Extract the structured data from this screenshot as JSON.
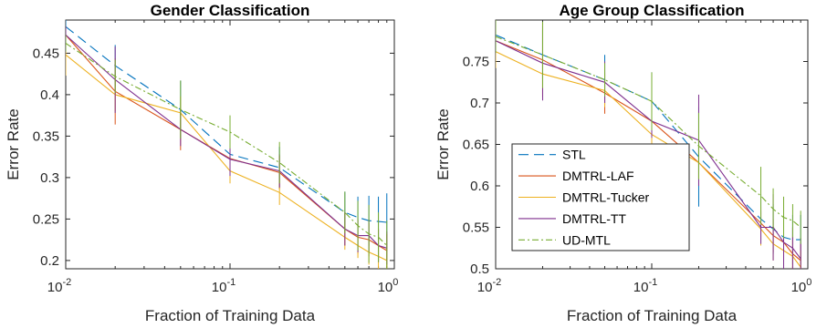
{
  "chart_data": [
    {
      "type": "line",
      "title": "Gender Classification",
      "xlabel": "Fraction of Training Data",
      "ylabel": "Error Rate",
      "xscale": "log",
      "xlim": [
        0.01,
        1
      ],
      "ylim": [
        0.19,
        0.49
      ],
      "x_ticks": [
        0.01,
        0.1,
        1
      ],
      "x_tick_labels": [
        [
          "10",
          "-2"
        ],
        [
          "10",
          "-1"
        ],
        [
          "10",
          "0"
        ]
      ],
      "y_ticks": [
        0.2,
        0.25,
        0.3,
        0.35,
        0.4,
        0.45
      ],
      "y_tick_labels": [
        "0.2",
        "0.25",
        "0.3",
        "0.35",
        "0.4",
        "0.45"
      ],
      "x": [
        0.01,
        0.02,
        0.05,
        0.1,
        0.2,
        0.5,
        0.6,
        0.7,
        0.8,
        0.9
      ],
      "grid": false,
      "legend": null,
      "series": [
        {
          "name": "STL",
          "color": "#0072BD",
          "dash": "11,6",
          "values": [
            0.482,
            0.435,
            0.382,
            0.328,
            0.312,
            0.258,
            0.252,
            0.248,
            0.247,
            0.246
          ],
          "errors": [
            0.015,
            0.025,
            0.035,
            0.025,
            0.025,
            0.025,
            0.025,
            0.03,
            0.03,
            0.035
          ]
        },
        {
          "name": "DMTRL-LAF",
          "color": "#D95319",
          "dash": "",
          "values": [
            0.472,
            0.404,
            0.358,
            0.323,
            0.306,
            0.238,
            0.228,
            0.225,
            0.218,
            0.212
          ],
          "errors": [
            0.01,
            0.04,
            0.025,
            0.02,
            0.02,
            0.02,
            0.02,
            0.02,
            0.02,
            0.02
          ]
        },
        {
          "name": "DMTRL-Tucker",
          "color": "#EDB120",
          "dash": "",
          "values": [
            0.448,
            0.4,
            0.378,
            0.308,
            0.282,
            0.228,
            0.218,
            0.21,
            0.205,
            0.2
          ],
          "errors": [
            0.025,
            0.02,
            0.02,
            0.015,
            0.015,
            0.015,
            0.015,
            0.015,
            0.015,
            0.015
          ]
        },
        {
          "name": "DMTRL-TT",
          "color": "#7E2F8E",
          "dash": "",
          "values": [
            0.472,
            0.418,
            0.358,
            0.322,
            0.308,
            0.238,
            0.23,
            0.23,
            0.218,
            0.215
          ],
          "errors": [
            0.01,
            0.04,
            0.02,
            0.02,
            0.02,
            0.02,
            0.02,
            0.02,
            0.02,
            0.02
          ]
        },
        {
          "name": "UD-MTL",
          "color": "#77AC30",
          "dash": "7,3,2,3",
          "values": [
            0.462,
            0.422,
            0.382,
            0.355,
            0.318,
            0.258,
            0.242,
            0.232,
            0.228,
            0.218
          ],
          "errors": [
            0.01,
            0.02,
            0.035,
            0.02,
            0.025,
            0.025,
            0.03,
            0.035,
            0.03,
            0.03
          ]
        }
      ]
    },
    {
      "type": "line",
      "title": "Age Group Classification",
      "xlabel": "Fraction of Training Data",
      "ylabel": "Error Rate",
      "xscale": "log",
      "xlim": [
        0.01,
        1
      ],
      "ylim": [
        0.5,
        0.8
      ],
      "x_ticks": [
        0.01,
        0.1,
        1
      ],
      "x_tick_labels": [
        [
          "10",
          "-2"
        ],
        [
          "10",
          "-1"
        ],
        [
          "10",
          "0"
        ]
      ],
      "y_ticks": [
        0.5,
        0.55,
        0.6,
        0.65,
        0.7,
        0.75
      ],
      "y_tick_labels": [
        "0.5",
        "0.55",
        "0.6",
        "0.65",
        "0.7",
        "0.75"
      ],
      "x": [
        0.01,
        0.02,
        0.05,
        0.1,
        0.2,
        0.5,
        0.6,
        0.7,
        0.8,
        0.9
      ],
      "grid": false,
      "legend": "lower-left-center",
      "series": [
        {
          "name": "STL",
          "color": "#0072BD",
          "dash": "11,6",
          "values": [
            0.782,
            0.758,
            0.728,
            0.702,
            0.635,
            0.56,
            0.548,
            0.538,
            0.535,
            0.535
          ],
          "errors": [
            0.01,
            0.03,
            0.03,
            0.035,
            0.06,
            0.03,
            0.03,
            0.03,
            0.03,
            0.03
          ]
        },
        {
          "name": "DMTRL-LAF",
          "color": "#D95319",
          "dash": "",
          "values": [
            0.775,
            0.752,
            0.712,
            0.678,
            0.628,
            0.555,
            0.54,
            0.532,
            0.518,
            0.51
          ],
          "errors": [
            0.01,
            0.045,
            0.025,
            0.02,
            0.02,
            0.02,
            0.02,
            0.02,
            0.02,
            0.02
          ]
        },
        {
          "name": "DMTRL-Tucker",
          "color": "#EDB120",
          "dash": "",
          "values": [
            0.762,
            0.735,
            0.715,
            0.662,
            0.628,
            0.548,
            0.53,
            0.522,
            0.515,
            0.502
          ],
          "errors": [
            0.02,
            0.025,
            0.02,
            0.02,
            0.02,
            0.02,
            0.02,
            0.02,
            0.02,
            0.02
          ]
        },
        {
          "name": "DMTRL-TT",
          "color": "#7E2F8E",
          "dash": "",
          "values": [
            0.775,
            0.748,
            0.725,
            0.678,
            0.655,
            0.55,
            0.55,
            0.532,
            0.525,
            0.512
          ],
          "errors": [
            0.01,
            0.045,
            0.025,
            0.02,
            0.055,
            0.02,
            0.04,
            0.04,
            0.025,
            0.025
          ]
        },
        {
          "name": "UD-MTL",
          "color": "#77AC30",
          "dash": "7,3,2,3",
          "values": [
            0.78,
            0.758,
            0.728,
            0.702,
            0.648,
            0.588,
            0.572,
            0.562,
            0.558,
            0.55
          ],
          "errors": [
            0.02,
            0.04,
            0.02,
            0.035,
            0.04,
            0.035,
            0.025,
            0.025,
            0.02,
            0.02
          ]
        }
      ]
    }
  ]
}
